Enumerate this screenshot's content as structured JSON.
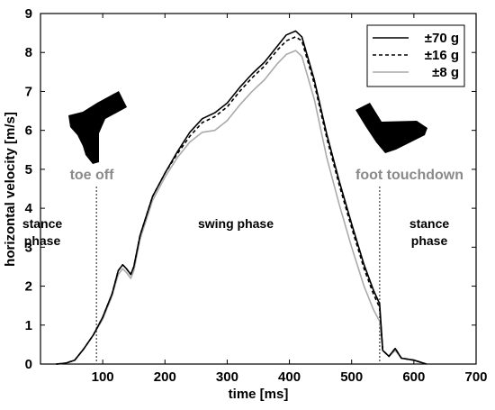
{
  "chart_data": {
    "type": "line",
    "xlabel": "time [ms]",
    "ylabel": "horizontal velocity [m/s]",
    "xlim": [
      0,
      700
    ],
    "ylim": [
      0,
      9
    ],
    "xticks": [
      100,
      200,
      300,
      400,
      500,
      600,
      700
    ],
    "yticks": [
      0,
      1,
      2,
      3,
      4,
      5,
      6,
      7,
      8,
      9
    ],
    "grid": false,
    "legend_position": "top-right",
    "series": [
      {
        "name": "±70 g",
        "color": "#000000",
        "dash": "solid",
        "x": [
          25,
          40,
          55,
          70,
          85,
          100,
          115,
          125,
          132,
          138,
          145,
          150,
          160,
          180,
          200,
          220,
          240,
          260,
          280,
          300,
          320,
          340,
          360,
          380,
          395,
          410,
          420,
          440,
          460,
          480,
          500,
          520,
          535,
          545,
          550,
          560,
          570,
          580,
          600,
          620
        ],
        "y": [
          0,
          0.02,
          0.1,
          0.4,
          0.75,
          1.2,
          1.8,
          2.4,
          2.55,
          2.45,
          2.3,
          2.5,
          3.3,
          4.3,
          4.9,
          5.45,
          5.95,
          6.3,
          6.45,
          6.7,
          7.1,
          7.45,
          7.75,
          8.15,
          8.45,
          8.55,
          8.4,
          7.3,
          5.9,
          4.7,
          3.6,
          2.55,
          1.9,
          1.55,
          0.35,
          0.2,
          0.4,
          0.15,
          0.1,
          0
        ]
      },
      {
        "name": "±16 g",
        "color": "#000000",
        "dash": "4,3",
        "x": [
          25,
          40,
          55,
          70,
          85,
          100,
          115,
          125,
          132,
          138,
          145,
          150,
          160,
          180,
          200,
          220,
          240,
          260,
          280,
          300,
          320,
          340,
          360,
          380,
          395,
          410,
          420,
          440,
          460,
          480,
          500,
          520,
          535,
          545,
          550,
          560,
          570,
          580,
          600,
          620
        ],
        "y": [
          0,
          0.02,
          0.1,
          0.4,
          0.75,
          1.2,
          1.8,
          2.4,
          2.55,
          2.45,
          2.3,
          2.5,
          3.3,
          4.3,
          4.9,
          5.4,
          5.85,
          6.2,
          6.35,
          6.6,
          7.0,
          7.35,
          7.65,
          8.05,
          8.3,
          8.4,
          8.3,
          7.2,
          5.8,
          4.6,
          3.5,
          2.45,
          1.8,
          1.45,
          0.35,
          0.2,
          0.4,
          0.15,
          0.1,
          0
        ]
      },
      {
        "name": "±8 g",
        "color": "#aaaaaa",
        "dash": "solid",
        "x": [
          25,
          40,
          55,
          70,
          85,
          100,
          115,
          125,
          132,
          138,
          145,
          150,
          160,
          180,
          200,
          220,
          240,
          260,
          280,
          300,
          320,
          340,
          360,
          380,
          395,
          410,
          420,
          440,
          460,
          480,
          500,
          520,
          535,
          545,
          550,
          560,
          570,
          580,
          600,
          620
        ],
        "y": [
          0,
          0.02,
          0.1,
          0.4,
          0.75,
          1.15,
          1.75,
          2.3,
          2.45,
          2.35,
          2.2,
          2.4,
          3.2,
          4.2,
          4.8,
          5.3,
          5.7,
          5.95,
          6.0,
          6.25,
          6.65,
          7.0,
          7.3,
          7.7,
          7.95,
          8.05,
          7.9,
          6.8,
          5.3,
          4.1,
          3.0,
          2.0,
          1.4,
          1.1,
          0.35,
          0.2,
          0.35,
          0.15,
          0.1,
          0
        ]
      }
    ],
    "vlines": [
      90,
      545
    ],
    "annotations": {
      "toe_off": "toe off",
      "foot_touchdown": "foot touchdown",
      "stance_left_1": "stance",
      "stance_left_2": "phase",
      "swing": "swing phase",
      "stance_right_1": "stance",
      "stance_right_2": "phase"
    },
    "icons": [
      "foot-toe-off-icon",
      "foot-touchdown-icon"
    ]
  }
}
